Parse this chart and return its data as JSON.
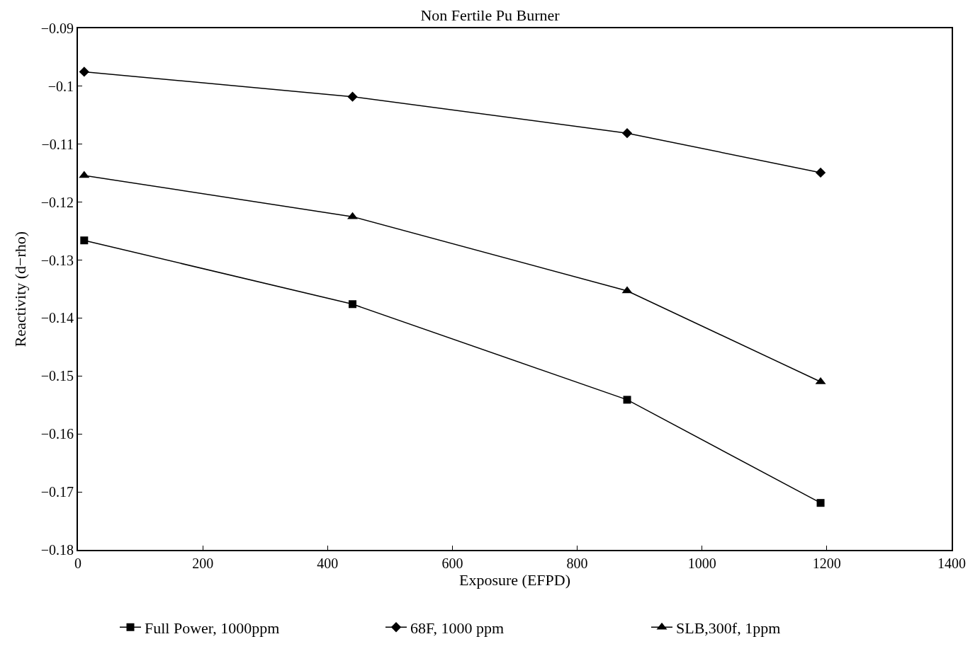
{
  "chart_data": {
    "type": "line",
    "title": "Non Fertile Pu Burner",
    "xlabel": "Exposure (EFPD)",
    "ylabel": "Reactivity (d−rho)",
    "x": [
      10,
      440,
      880,
      1190
    ],
    "series": [
      {
        "name": "Full Power, 1000ppm",
        "color": "#000000",
        "marker": "square",
        "values": [
          -0.1266,
          -0.1376,
          -0.1541,
          -0.1719
        ]
      },
      {
        "name": "68F, 1000 ppm",
        "color": "#000000",
        "marker": "diamond",
        "values": [
          -0.0975,
          -0.1018,
          -0.1081,
          -0.1149
        ]
      },
      {
        "name": "SLB,300f, 1ppm",
        "color": "#000000",
        "marker": "triangle",
        "values": [
          -0.1154,
          -0.1225,
          -0.1353,
          -0.151
        ]
      }
    ],
    "xlim": [
      0,
      1400
    ],
    "xticks": [
      0,
      200,
      400,
      600,
      800,
      1000,
      1200,
      1400
    ],
    "ylim": [
      -0.18,
      -0.09
    ],
    "yticks": [
      {
        "value": -0.18,
        "label": "−0.18"
      },
      {
        "value": -0.17,
        "label": "−0.17"
      },
      {
        "value": -0.16,
        "label": "−0.16"
      },
      {
        "value": -0.15,
        "label": "−0.15"
      },
      {
        "value": -0.14,
        "label": "−0.14"
      },
      {
        "value": -0.13,
        "label": "−0.13"
      },
      {
        "value": -0.12,
        "label": "−0.12"
      },
      {
        "value": -0.11,
        "label": "−0.11"
      },
      {
        "value": -0.1,
        "label": "−0.1"
      },
      {
        "value": -0.09,
        "label": "−0.09"
      }
    ],
    "legend": "bottom",
    "line_style": "solid"
  }
}
